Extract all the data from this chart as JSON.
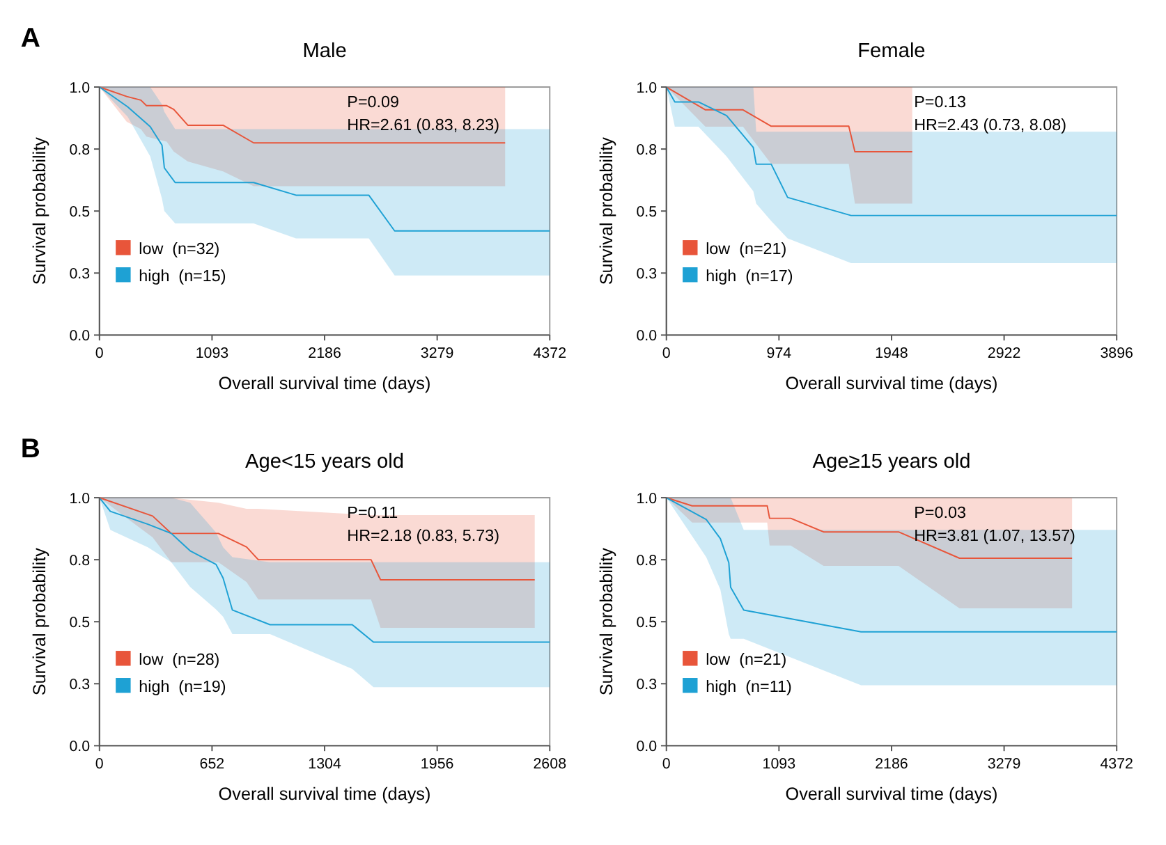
{
  "chart_data": [
    {
      "type": "line",
      "title": "Male",
      "xlabel": "Overall survival time (days)",
      "ylabel": "Survival probability",
      "annotations": [
        "A",
        "P=0.09",
        "HR=2.61 (0.83, 8.23)"
      ],
      "xlim": [
        0,
        4372
      ],
      "xticks": [
        0,
        1093,
        2186,
        3279,
        4372
      ],
      "ylim": [
        0,
        1
      ],
      "yticks": [
        {
          "value": 0,
          "label": "0.0"
        },
        {
          "value": 0.25,
          "label": "0.3"
        },
        {
          "value": 0.5,
          "label": "0.5"
        },
        {
          "value": 0.75,
          "label": "0.8"
        },
        {
          "value": 1,
          "label": "1.0"
        }
      ],
      "grid": false,
      "legend": "bottom left",
      "line_style": "solid",
      "series": [
        {
          "name": "low  (n=32)",
          "color": "#e8553a",
          "x": [
            0,
            265,
            402,
            456,
            653,
            721,
            858,
            1200,
            1497,
            3939
          ],
          "values": [
            1,
            0.962,
            0.947,
            0.925,
            0.925,
            0.91,
            0.846,
            0.846,
            0.775,
            0.775
          ],
          "lower": [
            1,
            0.86,
            0.83,
            0.8,
            0.78,
            0.74,
            0.7,
            0.66,
            0.6,
            0.6
          ],
          "upper": [
            1,
            1,
            1,
            1,
            1,
            1,
            1,
            1,
            1,
            1
          ]
        },
        {
          "name": "high  (n=15)",
          "color": "#1ea1d4",
          "x": [
            0,
            274,
            493,
            607,
            630,
            735,
            1497,
            1908,
            2615,
            2866,
            4372
          ],
          "values": [
            1,
            0.92,
            0.84,
            0.766,
            0.674,
            0.615,
            0.615,
            0.564,
            0.564,
            0.42,
            0.42
          ],
          "lower": [
            1,
            0.88,
            0.72,
            0.55,
            0.5,
            0.45,
            0.45,
            0.39,
            0.39,
            0.24,
            0.24
          ],
          "upper": [
            1,
            1,
            1,
            0.93,
            0.9,
            0.83,
            0.83,
            0.83,
            0.83,
            0.83,
            0.83
          ]
        }
      ]
    },
    {
      "type": "line",
      "title": "Female",
      "xlabel": "Overall survival time (days)",
      "ylabel": "Survival probability",
      "annotations": [
        "P=0.13",
        "HR=2.43 (0.73, 8.08)"
      ],
      "xlim": [
        0,
        3896
      ],
      "xticks": [
        0,
        974,
        1948,
        2922,
        3896
      ],
      "ylim": [
        0,
        1
      ],
      "yticks": [
        {
          "value": 0,
          "label": "0.0"
        },
        {
          "value": 0.25,
          "label": "0.3"
        },
        {
          "value": 0.5,
          "label": "0.5"
        },
        {
          "value": 0.75,
          "label": "0.8"
        },
        {
          "value": 1,
          "label": "1.0"
        }
      ],
      "grid": false,
      "legend": "bottom left",
      "line_style": "solid",
      "series": [
        {
          "name": "low  (n=21)",
          "color": "#e8553a",
          "x": [
            0,
            338,
            663,
            907,
            1578,
            1631,
            2127
          ],
          "values": [
            1,
            0.908,
            0.908,
            0.842,
            0.842,
            0.739,
            0.739
          ],
          "lower": [
            1,
            0.84,
            0.84,
            0.69,
            0.69,
            0.53,
            0.53
          ],
          "upper": [
            1,
            1,
            1,
            1,
            1,
            1,
            1
          ]
        },
        {
          "name": "high  (n=17)",
          "color": "#1ea1d4",
          "x": [
            0,
            73,
            277,
            521,
            752,
            777,
            907,
            1049,
            1598,
            3896
          ],
          "values": [
            1,
            0.94,
            0.94,
            0.885,
            0.756,
            0.689,
            0.689,
            0.555,
            0.482,
            0.482
          ],
          "lower": [
            1,
            0.84,
            0.84,
            0.72,
            0.58,
            0.53,
            0.46,
            0.39,
            0.29,
            0.29
          ],
          "upper": [
            1,
            1,
            1,
            1,
            1,
            0.82,
            0.82,
            0.82,
            0.82,
            0.82
          ]
        }
      ]
    },
    {
      "type": "line",
      "title": "Age<15 years old",
      "xlabel": "Overall survival time (days)",
      "ylabel": "Survival probability",
      "annotations": [
        "B",
        "P=0.11",
        "HR=2.18 (0.83, 5.73)"
      ],
      "xlim": [
        0,
        2608
      ],
      "xticks": [
        0,
        652,
        1304,
        1956,
        2608
      ],
      "ylim": [
        0,
        1
      ],
      "yticks": [
        {
          "value": 0,
          "label": "0.0"
        },
        {
          "value": 0.25,
          "label": "0.3"
        },
        {
          "value": 0.5,
          "label": "0.5"
        },
        {
          "value": 0.75,
          "label": "0.8"
        },
        {
          "value": 1,
          "label": "1.0"
        }
      ],
      "grid": false,
      "legend": "bottom left",
      "line_style": "solid",
      "series": [
        {
          "name": "low  (n=28)",
          "color": "#e8553a",
          "x": [
            0,
            308,
            416,
            689,
            852,
            920,
            1573,
            1628,
            2521
          ],
          "values": [
            1,
            0.926,
            0.856,
            0.856,
            0.801,
            0.75,
            0.75,
            0.669,
            0.669
          ],
          "lower": [
            1,
            0.84,
            0.74,
            0.74,
            0.66,
            0.59,
            0.59,
            0.475,
            0.475
          ],
          "upper": [
            1,
            1,
            1,
            0.98,
            0.955,
            0.955,
            0.93,
            0.93,
            0.93
          ]
        },
        {
          "name": "high  (n=19)",
          "color": "#1ea1d4",
          "x": [
            0,
            63,
            280,
            416,
            525,
            675,
            716,
            770,
            988,
            1464,
            1587,
            2608
          ],
          "values": [
            1,
            0.945,
            0.893,
            0.856,
            0.786,
            0.731,
            0.676,
            0.547,
            0.488,
            0.488,
            0.418,
            0.418
          ],
          "lower": [
            1,
            0.87,
            0.8,
            0.74,
            0.64,
            0.55,
            0.52,
            0.45,
            0.45,
            0.31,
            0.236,
            0.236
          ],
          "upper": [
            1,
            1,
            1,
            1,
            0.98,
            0.86,
            0.8,
            0.76,
            0.74,
            0.74,
            0.74,
            0.74
          ]
        }
      ]
    },
    {
      "type": "line",
      "title": "Age≥15 years old",
      "xlabel": "Overall survival time (days)",
      "ylabel": "Survival probability",
      "annotations": [
        "P=0.03",
        "HR=3.81 (1.07, 13.57)"
      ],
      "xlim": [
        0,
        4372
      ],
      "xticks": [
        0,
        1093,
        2186,
        3279,
        4372
      ],
      "ylim": [
        0,
        1
      ],
      "yticks": [
        {
          "value": 0,
          "label": "0.0"
        },
        {
          "value": 0.25,
          "label": "0.3"
        },
        {
          "value": 0.5,
          "label": "0.5"
        },
        {
          "value": 0.75,
          "label": "0.8"
        },
        {
          "value": 1,
          "label": "1.0"
        }
      ],
      "grid": false,
      "legend": "bottom left",
      "line_style": "solid",
      "series": [
        {
          "name": "low  (n=21)",
          "color": "#e8553a",
          "x": [
            0,
            250,
            979,
            1002,
            1207,
            1526,
            2254,
            2846,
            3939
          ],
          "values": [
            1,
            0.967,
            0.967,
            0.917,
            0.917,
            0.862,
            0.862,
            0.756,
            0.756
          ],
          "lower": [
            1,
            0.9,
            0.9,
            0.807,
            0.807,
            0.725,
            0.725,
            0.554,
            0.554
          ],
          "upper": [
            1,
            1,
            1,
            1,
            1,
            1,
            1,
            1,
            1
          ]
        },
        {
          "name": "high  (n=11)",
          "color": "#1ea1d4",
          "x": [
            0,
            387,
            524,
            606,
            624,
            751,
            1890,
            4372
          ],
          "values": [
            1,
            0.912,
            0.835,
            0.738,
            0.639,
            0.547,
            0.459,
            0.459
          ],
          "lower": [
            1,
            0.76,
            0.63,
            0.45,
            0.431,
            0.431,
            0.244,
            0.244
          ],
          "upper": [
            1,
            1,
            1,
            1,
            1,
            0.87,
            0.87,
            0.87
          ]
        }
      ]
    }
  ]
}
